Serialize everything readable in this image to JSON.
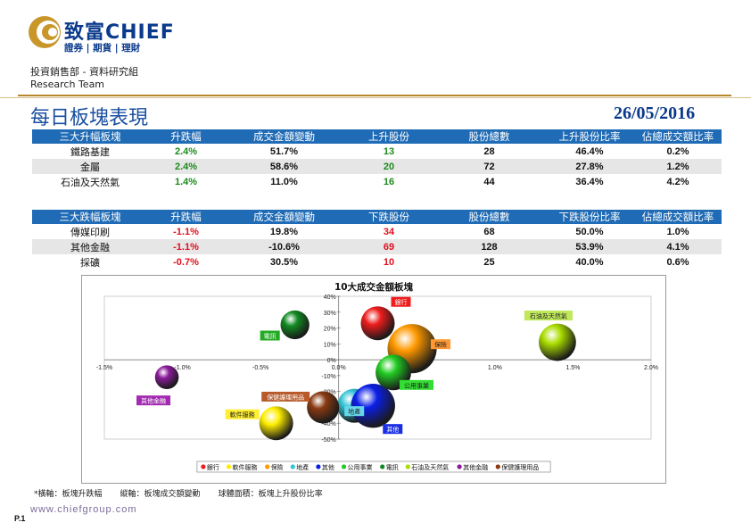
{
  "header": {
    "brand_name": "致富CHIEF",
    "brand_tagline": "證券 | 期貨 | 理財",
    "department": "投資銷售部 - 資料研究組",
    "team": "Research Team",
    "title": "每日板塊表現",
    "date": "26/05/2016"
  },
  "colors": {
    "table_header": "#1f6bb5",
    "gain": "#1c8a1c",
    "loss": "#e0101e",
    "title_blue": "#1a4fa0",
    "gold_rule": "#b8862c"
  },
  "gainers_table": {
    "headers": [
      "三大升幅板塊",
      "升跌幅",
      "成交金額變動",
      "上升股份",
      "股份總數",
      "上升股份比率",
      "佔總成交額比率"
    ],
    "rows": [
      [
        "鐵路基建",
        "2.4%",
        "51.7%",
        "13",
        "28",
        "46.4%",
        "0.2%"
      ],
      [
        "金屬",
        "2.4%",
        "58.6%",
        "20",
        "72",
        "27.8%",
        "1.2%"
      ],
      [
        "石油及天然氣",
        "1.4%",
        "11.0%",
        "16",
        "44",
        "36.4%",
        "4.2%"
      ]
    ]
  },
  "losers_table": {
    "headers": [
      "三大跌幅板塊",
      "升跌幅",
      "成交金額變動",
      "下跌股份",
      "股份總數",
      "下跌股份比率",
      "佔總成交額比率"
    ],
    "rows": [
      [
        "傳媒印刷",
        "-1.1%",
        "19.8%",
        "34",
        "68",
        "50.0%",
        "1.0%"
      ],
      [
        "其他金融",
        "-1.1%",
        "-10.6%",
        "69",
        "128",
        "53.9%",
        "4.1%"
      ],
      [
        "採礦",
        "-0.7%",
        "30.5%",
        "10",
        "25",
        "40.0%",
        "0.6%"
      ]
    ]
  },
  "chart_data": {
    "type": "scatter",
    "title": "10大成交金額板塊",
    "xlabel": "板塊升跌幅",
    "ylabel": "板塊成交額變動",
    "xlim": [
      -1.5,
      2.0
    ],
    "ylim": [
      -50,
      40
    ],
    "x_ticks": [
      "-1.5%",
      "-1.0%",
      "-0.5%",
      "0.0%",
      "0.5%",
      "1.0%",
      "1.5%",
      "2.0%"
    ],
    "y_ticks": [
      "40%",
      "30%",
      "20%",
      "10%",
      "0%",
      "-10%",
      "-20%",
      "-30%",
      "-40%",
      "-50%"
    ],
    "series": [
      {
        "name": "銀行",
        "x": 0.25,
        "y": 23,
        "size": 1.0,
        "color": "#ee1c1c"
      },
      {
        "name": "軟件服務",
        "x": -0.4,
        "y": -40,
        "size": 1.0,
        "color": "#ffee00"
      },
      {
        "name": "保險",
        "x": 0.47,
        "y": 7,
        "size": 1.45,
        "color": "#ff9900"
      },
      {
        "name": "地產",
        "x": 0.1,
        "y": -29,
        "size": 1.0,
        "color": "#33c4d6"
      },
      {
        "name": "其他",
        "x": 0.22,
        "y": -29,
        "size": 1.3,
        "color": "#0a1ee6"
      },
      {
        "name": "公用事業",
        "x": 0.35,
        "y": -8,
        "size": 1.05,
        "color": "#22cc22"
      },
      {
        "name": "電訊",
        "x": -0.28,
        "y": 22,
        "size": 0.85,
        "color": "#118a22"
      },
      {
        "name": "石油及天然氣",
        "x": 1.4,
        "y": 11,
        "size": 1.1,
        "color": "#aadd00"
      },
      {
        "name": "其他金融",
        "x": -1.1,
        "y": -11,
        "size": 0.7,
        "color": "#8a1a9a"
      },
      {
        "name": "保健護理用品",
        "x": -0.1,
        "y": -30,
        "size": 0.95,
        "color": "#8a3a12"
      }
    ],
    "labels": [
      {
        "name": "銀行",
        "text": "銀行",
        "bg": "#ee1c1c",
        "fg": "#ffffff"
      },
      {
        "name": "保險",
        "text": "保險",
        "bg": "#ff9933",
        "fg": "#222222"
      },
      {
        "name": "石油及天然氣",
        "text": "石油及天然氣",
        "bg": "#bfe85a",
        "fg": "#222222"
      },
      {
        "name": "電訊",
        "text": "電訊",
        "bg": "#22aa22",
        "fg": "#ffffff"
      },
      {
        "name": "地產",
        "text": "地產",
        "bg": "#66d8ea",
        "fg": "#222222"
      },
      {
        "name": "公用事業",
        "text": "公用事業",
        "bg": "#33dd33",
        "fg": "#222222"
      },
      {
        "name": "保健護理用品",
        "text": "保健護理用品",
        "bg": "#b85a2a",
        "fg": "#ffffff"
      },
      {
        "name": "其他金融",
        "text": "其他金融",
        "bg": "#a22ab0",
        "fg": "#ffffff"
      },
      {
        "name": "軟件服務",
        "text": "軟件服務",
        "bg": "#ffee33",
        "fg": "#222222"
      },
      {
        "name": "其他",
        "text": "其他",
        "bg": "#1a2ee6",
        "fg": "#ffffff"
      }
    ],
    "legend_position": "bottom"
  },
  "footer": {
    "footnote_x": "*橫軸：板塊升跌幅",
    "footnote_y": "縱軸：板塊成交額變動",
    "footnote_size": "球體面積：板塊上升股份比率",
    "website": "www.chiefgroup.com",
    "page": "P.1"
  }
}
